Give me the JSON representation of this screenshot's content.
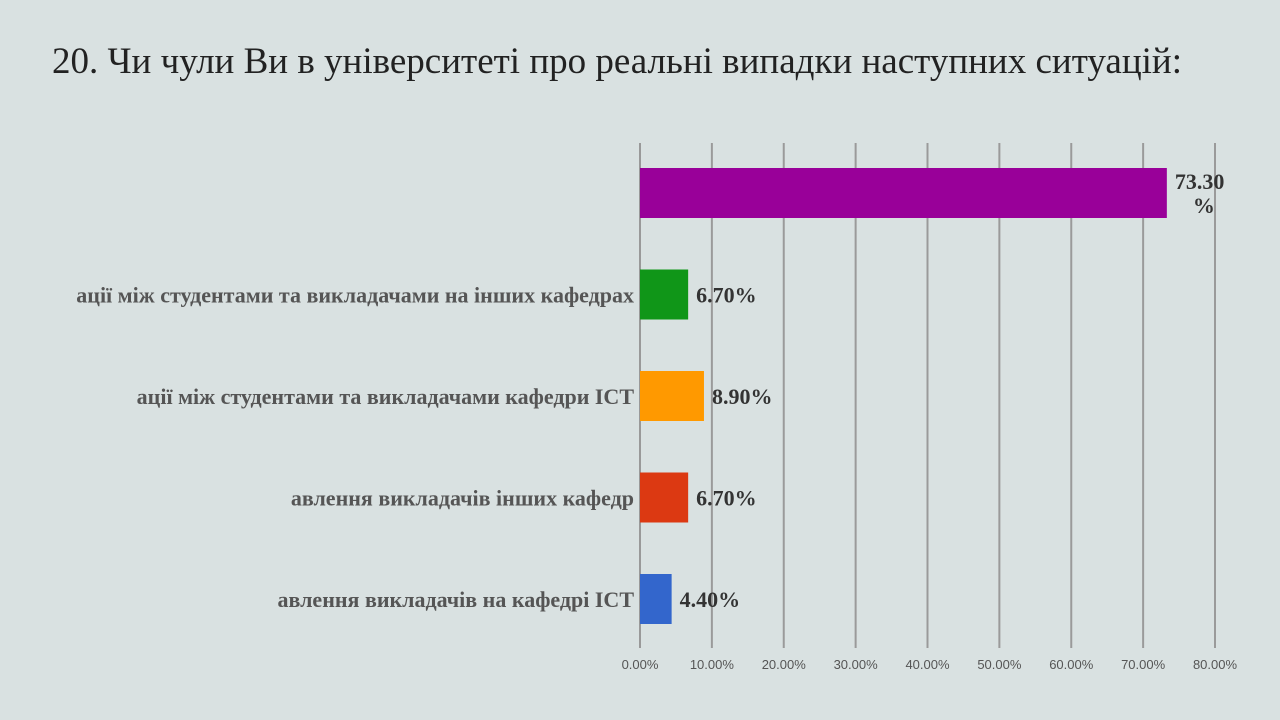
{
  "page": {
    "title": "20. Чи чули Ви в університеті про реальні випадки наступних ситуацій:"
  },
  "colors": {
    "background": "#d9e1e1",
    "gridline": "#9a9a9a",
    "axis": "#999999"
  },
  "chart_data": {
    "type": "bar",
    "orientation": "horizontal",
    "title": "",
    "xlabel": "",
    "ylabel": "",
    "xlim": [
      0,
      80
    ],
    "grid": true,
    "legend": "none",
    "x_ticks": [
      "0.00%",
      "10.00%",
      "20.00%",
      "30.00%",
      "40.00%",
      "50.00%",
      "60.00%",
      "70.00%",
      "80.00%"
    ],
    "categories": [
      "",
      "ації між студентами та викладачами на інших кафедрах",
      "ації між студентами та викладачами кафедри ІСТ",
      "авлення викладачів інших кафедр",
      "авлення викладачів на кафедрі ІСТ"
    ],
    "values": [
      73.3,
      6.7,
      8.9,
      6.7,
      4.4
    ],
    "value_labels": [
      "73.30 %",
      "6.70%",
      "8.90%",
      "6.70%",
      "4.40%"
    ],
    "bar_colors": [
      "#990099",
      "#109618",
      "#ff9900",
      "#dc3912",
      "#3366cc"
    ]
  }
}
